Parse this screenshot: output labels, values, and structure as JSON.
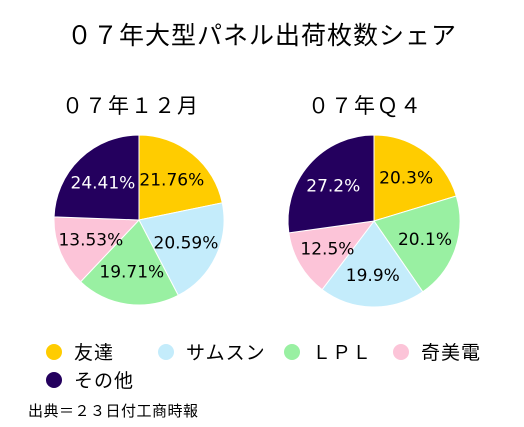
{
  "chart_data": [
    {
      "type": "pie",
      "title": "０７年大型パネル出荷枚数シェア",
      "subtitle": "０７年１２月",
      "categories": [
        "友達",
        "サムスン",
        "ＬＰＬ",
        "奇美電",
        "その他"
      ],
      "values": [
        21.76,
        20.59,
        19.71,
        13.53,
        24.41
      ],
      "labels": [
        "21.76%",
        "20.59%",
        "19.71%",
        "13.53%",
        "24.41%"
      ]
    },
    {
      "type": "pie",
      "subtitle": "０７年Ｑ４",
      "categories": [
        "友達",
        "サムスン",
        "ＬＰＬ",
        "奇美電",
        "その他"
      ],
      "values": [
        20.3,
        19.9,
        20.1,
        12.5,
        27.2
      ],
      "labels": [
        "20.3%",
        "19.9%",
        "20.1%",
        "12.5%",
        "27.2%"
      ]
    }
  ],
  "q4_order": [
    0,
    2,
    1,
    3,
    4
  ],
  "legend": [
    {
      "label": "友達",
      "color": "#ffcc00"
    },
    {
      "label": "サムスン",
      "color": "#c4ecfb"
    },
    {
      "label": "ＬＰＬ",
      "color": "#99f0a2"
    },
    {
      "label": "奇美電",
      "color": "#fcc4d8"
    },
    {
      "label": "その他",
      "color": "#24005e"
    }
  ],
  "source": "出典＝２３日付工商時報"
}
